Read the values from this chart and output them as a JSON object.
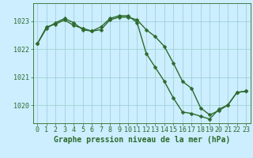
{
  "line1_x": [
    0,
    1,
    2,
    3,
    4,
    5,
    6,
    7,
    8,
    9,
    10,
    11,
    12,
    13,
    14,
    15,
    16,
    17,
    18,
    19,
    20,
    21,
    22,
    23
  ],
  "line1_y": [
    1022.2,
    1022.8,
    1022.9,
    1023.05,
    1022.85,
    1022.75,
    1022.65,
    1022.8,
    1023.1,
    1023.2,
    1023.2,
    1022.95,
    1021.85,
    1021.35,
    1020.85,
    1020.25,
    1019.75,
    1019.7,
    1019.6,
    1019.5,
    1019.85,
    1020.0,
    1020.45,
    1020.5
  ],
  "line2_x": [
    0,
    1,
    2,
    3,
    4,
    5,
    6,
    7,
    8,
    9,
    10,
    11,
    12,
    13,
    14,
    15,
    16,
    17,
    18,
    19,
    20,
    21,
    22,
    23
  ],
  "line2_y": [
    1022.2,
    1022.75,
    1022.95,
    1023.1,
    1022.95,
    1022.7,
    1022.65,
    1022.7,
    1023.05,
    1023.15,
    1023.15,
    1023.05,
    1022.7,
    1022.45,
    1022.1,
    1021.5,
    1020.85,
    1020.6,
    1019.9,
    1019.65,
    1019.8,
    1020.0,
    1020.45,
    1020.5
  ],
  "line_color": "#2d6a2d",
  "marker": "D",
  "marker_size": 2.5,
  "bg_color": "#cceeff",
  "grid_color": "#99cccc",
  "xlabel": "Graphe pression niveau de la mer (hPa)",
  "ylim": [
    1019.35,
    1023.65
  ],
  "yticks": [
    1020,
    1021,
    1022,
    1023
  ],
  "xticks": [
    0,
    1,
    2,
    3,
    4,
    5,
    6,
    7,
    8,
    9,
    10,
    11,
    12,
    13,
    14,
    15,
    16,
    17,
    18,
    19,
    20,
    21,
    22,
    23
  ],
  "line_width": 1.0,
  "tick_color": "#2d6a2d",
  "label_color": "#2d6a2d",
  "xlabel_fontsize": 7.0,
  "tick_fontsize": 6.0
}
